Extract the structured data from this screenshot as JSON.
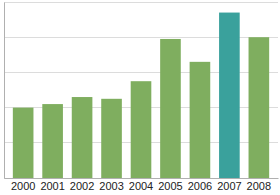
{
  "chart_data": {
    "type": "bar",
    "categories": [
      "2000",
      "2001",
      "2002",
      "2003",
      "2004",
      "2005",
      "2006",
      "2007",
      "2008"
    ],
    "values": [
      2.0,
      2.1,
      2.3,
      2.25,
      2.75,
      3.95,
      3.3,
      4.7,
      4.0
    ],
    "colors": [
      "#7fae5f",
      "#7fae5f",
      "#7fae5f",
      "#7fae5f",
      "#7fae5f",
      "#7fae5f",
      "#7fae5f",
      "#3aa19c",
      "#7fae5f"
    ],
    "ylim": [
      0,
      5
    ],
    "yticks": [
      0,
      1,
      2,
      3,
      4,
      5
    ],
    "grid": true,
    "tick_labels": "x"
  }
}
